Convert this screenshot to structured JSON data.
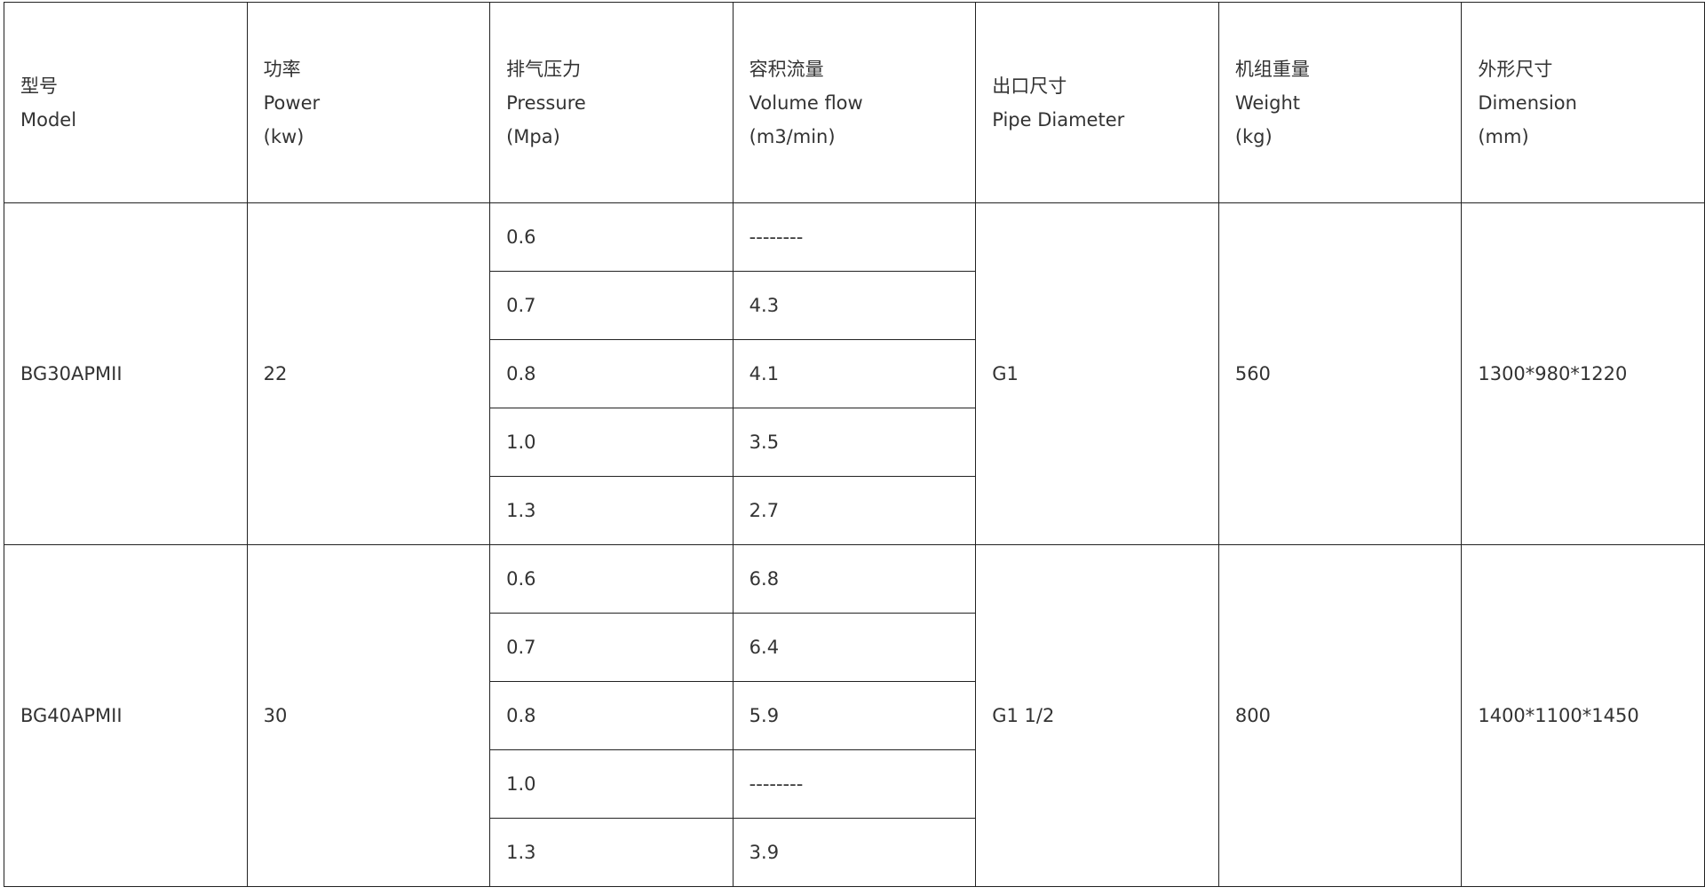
{
  "headers": [
    {
      "lines": [
        "型号",
        "Model"
      ]
    },
    {
      "lines": [
        "功率",
        "Power",
        "(kw)"
      ]
    },
    {
      "lines": [
        "排气压力",
        "Pressure",
        "(Mpa)"
      ]
    },
    {
      "lines": [
        "容积流量",
        "Volume flow",
        "(m3/min)"
      ]
    },
    {
      "lines": [
        "出口尺寸",
        "Pipe Diameter"
      ]
    },
    {
      "lines": [
        "机组重量",
        "Weight",
        "(kg)"
      ]
    },
    {
      "lines": [
        "外形尺寸",
        "Dimension",
        "(mm)"
      ]
    }
  ],
  "models": [
    {
      "model": "BG30APMII",
      "power": "22",
      "pipe": "G1",
      "weight": "560",
      "dimension": "1300*980*1220",
      "rows": [
        {
          "pressure": "0.6",
          "flow": "--------"
        },
        {
          "pressure": "0.7",
          "flow": "4.3"
        },
        {
          "pressure": "0.8",
          "flow": "4.1"
        },
        {
          "pressure": "1.0",
          "flow": "3.5"
        },
        {
          "pressure": "1.3",
          "flow": "2.7"
        }
      ]
    },
    {
      "model": "BG40APMII",
      "power": "30",
      "pipe": "G1 1/2",
      "weight": "800",
      "dimension": "1400*1100*1450",
      "rows": [
        {
          "pressure": "0.6",
          "flow": "6.8"
        },
        {
          "pressure": "0.7",
          "flow": "6.4"
        },
        {
          "pressure": "0.8",
          "flow": "5.9"
        },
        {
          "pressure": "1.0",
          "flow": "--------"
        },
        {
          "pressure": "1.3",
          "flow": "3.9"
        }
      ]
    }
  ]
}
